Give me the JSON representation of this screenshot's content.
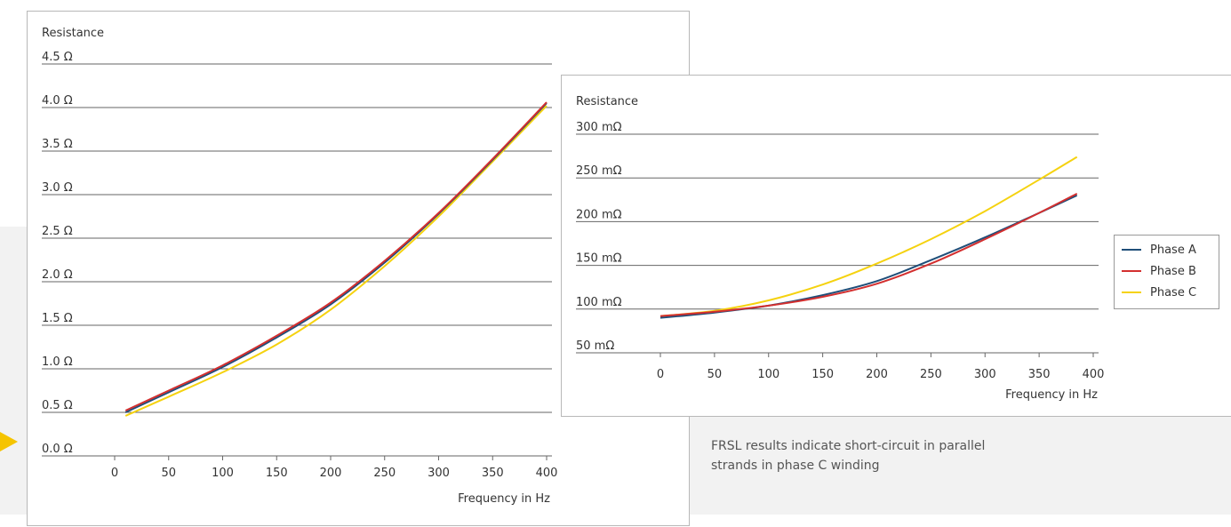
{
  "caption": "FRSL results indicate short-circuit in parallel strands in phase C winding",
  "legend": {
    "items": [
      {
        "label": "Phase A",
        "color": "#1f4e79"
      },
      {
        "label": "Phase B",
        "color": "#d32f2f"
      },
      {
        "label": "Phase C",
        "color": "#f5d20f"
      }
    ]
  },
  "chart_data": [
    {
      "type": "line",
      "ylabel": "Resistance",
      "xlabel": "Frequency in Hz",
      "xticks": [
        0,
        50,
        100,
        150,
        200,
        250,
        300,
        350,
        400
      ],
      "xtick_labels": [
        "0",
        "50",
        "100",
        "150",
        "200",
        "250",
        "300",
        "350",
        "400"
      ],
      "yticks": [
        0.0,
        0.5,
        1.0,
        1.5,
        2.0,
        2.5,
        3.0,
        3.5,
        4.0,
        4.5
      ],
      "ytick_labels": [
        "0.0 Ω",
        "0.5 Ω",
        "1.0 Ω",
        "1.5 Ω",
        "2.0 Ω",
        "2.5 Ω",
        "3.0 Ω",
        "3.5 Ω",
        "4.0 Ω",
        "4.5 Ω"
      ],
      "xlim": [
        -10,
        405
      ],
      "ylim": [
        0.0,
        4.5
      ],
      "grid": true,
      "series": [
        {
          "name": "Phase A",
          "color": "#1f4e79",
          "x": [
            10,
            50,
            100,
            150,
            200,
            250,
            300,
            350,
            400
          ],
          "y": [
            0.5,
            0.73,
            1.02,
            1.36,
            1.74,
            2.22,
            2.78,
            3.4,
            4.05
          ]
        },
        {
          "name": "Phase B",
          "color": "#d32f2f",
          "x": [
            10,
            50,
            100,
            150,
            200,
            250,
            300,
            350,
            400
          ],
          "y": [
            0.52,
            0.75,
            1.04,
            1.38,
            1.76,
            2.24,
            2.79,
            3.41,
            4.06
          ]
        },
        {
          "name": "Phase C",
          "color": "#f5d20f",
          "x": [
            10,
            50,
            100,
            150,
            200,
            250,
            300,
            350,
            400
          ],
          "y": [
            0.46,
            0.68,
            0.96,
            1.28,
            1.68,
            2.18,
            2.75,
            3.38,
            4.02
          ]
        }
      ]
    },
    {
      "type": "line",
      "ylabel": "Resistance",
      "xlabel": "Frequency in Hz",
      "xticks": [
        0,
        50,
        100,
        150,
        200,
        250,
        300,
        350,
        400
      ],
      "xtick_labels": [
        "0",
        "50",
        "100",
        "150",
        "200",
        "250",
        "300",
        "350",
        "400"
      ],
      "yticks": [
        50,
        100,
        150,
        200,
        250,
        300
      ],
      "ytick_labels": [
        "50 mΩ",
        "100 mΩ",
        "150 mΩ",
        "200 mΩ",
        "250 mΩ",
        "300 mΩ"
      ],
      "xlim": [
        -75,
        405
      ],
      "ylim": [
        50,
        300
      ],
      "grid": true,
      "legend_position": "right",
      "series": [
        {
          "name": "Phase A",
          "color": "#1f4e79",
          "x": [
            0,
            50,
            100,
            150,
            200,
            250,
            300,
            350,
            385
          ],
          "y": [
            90,
            96,
            104,
            116,
            132,
            156,
            182,
            210,
            230
          ]
        },
        {
          "name": "Phase B",
          "color": "#d32f2f",
          "x": [
            0,
            50,
            100,
            150,
            200,
            250,
            300,
            350,
            385
          ],
          "y": [
            92,
            97,
            104,
            114,
            129,
            152,
            180,
            210,
            232
          ]
        },
        {
          "name": "Phase C",
          "color": "#f5d20f",
          "x": [
            0,
            50,
            100,
            150,
            200,
            250,
            300,
            350,
            385
          ],
          "y": [
            92,
            98,
            110,
            128,
            152,
            180,
            212,
            248,
            274
          ]
        }
      ]
    }
  ]
}
